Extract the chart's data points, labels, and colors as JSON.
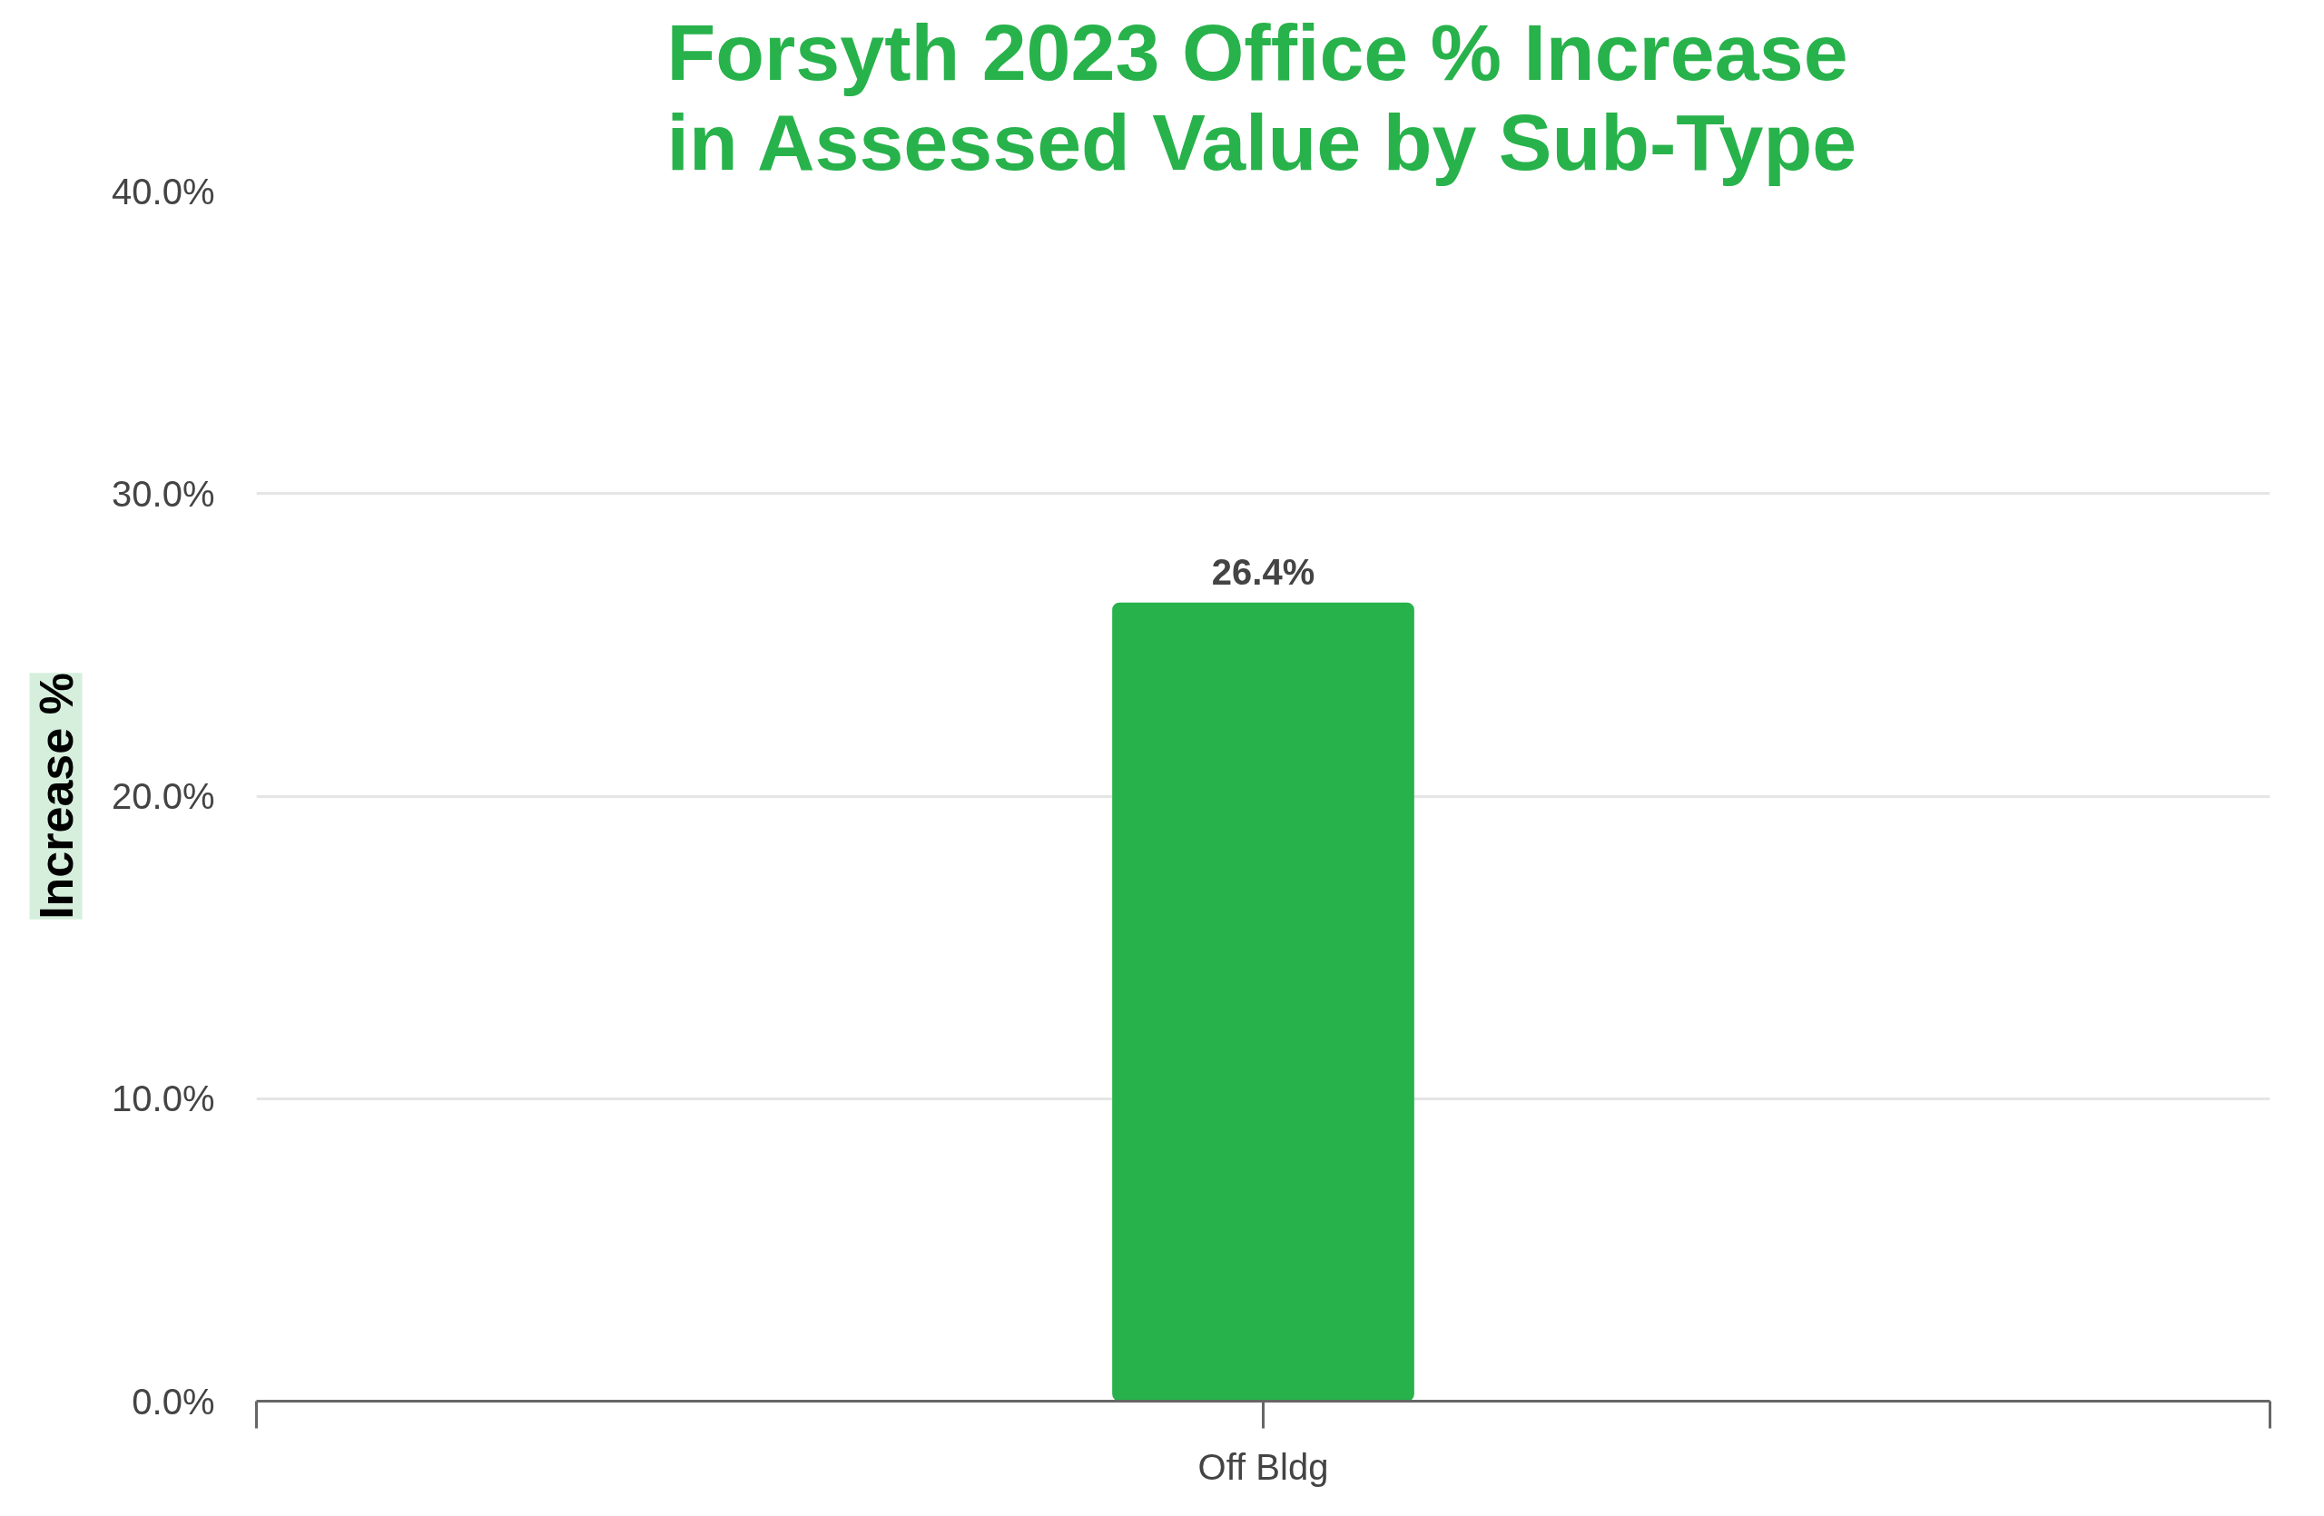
{
  "chart_data": {
    "type": "bar",
    "title": "Forsyth 2023 Office % Increase in Assessed Value by Sub-Type",
    "ylabel": "Increase %",
    "categories": [
      "Off Bldg"
    ],
    "values": [
      26.4
    ],
    "value_labels": [
      "26.4%"
    ],
    "color": "#28b24b",
    "ylim": [
      0,
      40
    ],
    "yticks": [
      {
        "value": 0,
        "label": "0.0%"
      },
      {
        "value": 10,
        "label": "10.0%"
      },
      {
        "value": 20,
        "label": "20.0%"
      },
      {
        "value": 30,
        "label": "30.0%"
      },
      {
        "value": 40,
        "label": "40.0%"
      }
    ],
    "grid": "y"
  }
}
